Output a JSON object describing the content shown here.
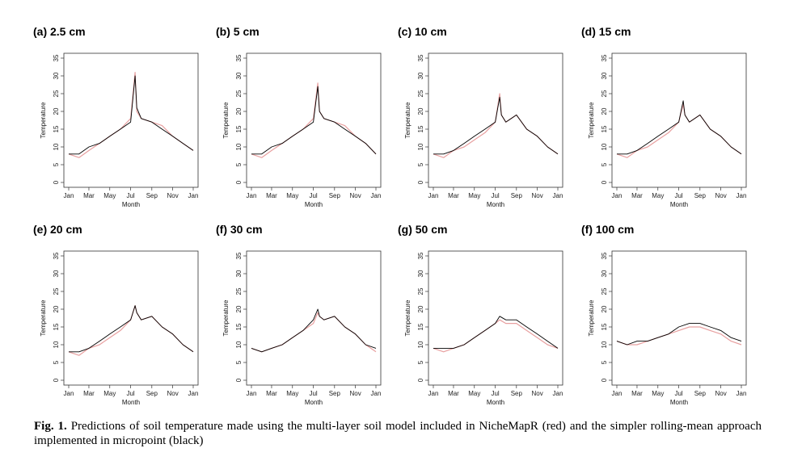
{
  "caption": {
    "label": "Fig. 1.",
    "text": " Predictions of soil temperature made using the multi-layer soil model included in NicheMapR (red) and the simpler rolling-mean approach implemented in micropoint (black)"
  },
  "chart_data": [
    {
      "type": "line",
      "title": "(a)  2.5 cm",
      "xlabel": "Month",
      "ylabel": "Temperature",
      "ylim": [
        0,
        35
      ],
      "xticks": [
        "Jan",
        "Mar",
        "May",
        "Jul",
        "Sep",
        "Nov",
        "Jan"
      ],
      "yticks": [
        0,
        5,
        10,
        15,
        20,
        25,
        30,
        35
      ],
      "x": [
        1,
        31,
        60,
        91,
        121,
        152,
        182,
        195,
        200,
        213,
        244,
        274,
        305,
        335,
        365
      ],
      "series": [
        {
          "color": "#e8a0a0",
          "values": [
            8,
            7,
            9,
            11,
            13,
            15,
            18,
            31,
            20,
            18,
            17,
            16,
            13,
            11,
            9
          ]
        },
        {
          "color": "#000000",
          "values": [
            8,
            8,
            10,
            11,
            13,
            15,
            17,
            30,
            21,
            18,
            17,
            15,
            13,
            11,
            9
          ]
        }
      ]
    },
    {
      "type": "line",
      "title": "(b)  5 cm",
      "xlabel": "Month",
      "ylabel": "Temperature",
      "ylim": [
        0,
        35
      ],
      "xticks": [
        "Jan",
        "Mar",
        "May",
        "Jul",
        "Sep",
        "Nov",
        "Jan"
      ],
      "yticks": [
        0,
        5,
        10,
        15,
        20,
        25,
        30,
        35
      ],
      "x": [
        1,
        31,
        60,
        91,
        121,
        152,
        182,
        195,
        200,
        213,
        244,
        274,
        305,
        335,
        365
      ],
      "series": [
        {
          "color": "#e8a0a0",
          "values": [
            8,
            7,
            9,
            11,
            13,
            15,
            18,
            28,
            20,
            18,
            17,
            16,
            13,
            11,
            8
          ]
        },
        {
          "color": "#000000",
          "values": [
            8,
            8,
            10,
            11,
            13,
            15,
            17,
            27,
            20,
            18,
            17,
            15,
            13,
            11,
            8
          ]
        }
      ]
    },
    {
      "type": "line",
      "title": "(c)  10 cm",
      "xlabel": "Month",
      "ylabel": "Temperature",
      "ylim": [
        0,
        35
      ],
      "xticks": [
        "Jan",
        "Mar",
        "May",
        "Jul",
        "Sep",
        "Nov",
        "Jan"
      ],
      "yticks": [
        0,
        5,
        10,
        15,
        20,
        25,
        30,
        35
      ],
      "x": [
        1,
        31,
        60,
        91,
        121,
        152,
        182,
        195,
        200,
        213,
        244,
        274,
        305,
        335,
        365
      ],
      "series": [
        {
          "color": "#e8a0a0",
          "values": [
            8,
            7,
            9,
            10,
            12,
            14,
            17,
            25,
            19,
            17,
            19,
            15,
            13,
            10,
            8
          ]
        },
        {
          "color": "#000000",
          "values": [
            8,
            8,
            9,
            11,
            13,
            15,
            17,
            24,
            19,
            17,
            19,
            15,
            13,
            10,
            8
          ]
        }
      ]
    },
    {
      "type": "line",
      "title": "(d)  15 cm",
      "xlabel": "Month",
      "ylabel": "Temperature",
      "ylim": [
        0,
        35
      ],
      "xticks": [
        "Jan",
        "Mar",
        "May",
        "Jul",
        "Sep",
        "Nov",
        "Jan"
      ],
      "yticks": [
        0,
        5,
        10,
        15,
        20,
        25,
        30,
        35
      ],
      "x": [
        1,
        31,
        60,
        91,
        121,
        152,
        182,
        195,
        200,
        213,
        244,
        274,
        305,
        335,
        365
      ],
      "series": [
        {
          "color": "#e8a0a0",
          "values": [
            8,
            7,
            9,
            10,
            12,
            14,
            17,
            22,
            19,
            17,
            19,
            15,
            13,
            10,
            8
          ]
        },
        {
          "color": "#000000",
          "values": [
            8,
            8,
            9,
            11,
            13,
            15,
            17,
            23,
            19,
            17,
            19,
            15,
            13,
            10,
            8
          ]
        }
      ]
    },
    {
      "type": "line",
      "title": "(e)  20 cm",
      "xlabel": "Month",
      "ylabel": "Temperature",
      "ylim": [
        0,
        35
      ],
      "xticks": [
        "Jan",
        "Mar",
        "May",
        "Jul",
        "Sep",
        "Nov",
        "Jan"
      ],
      "yticks": [
        0,
        5,
        10,
        15,
        20,
        25,
        30,
        35
      ],
      "x": [
        1,
        31,
        60,
        91,
        121,
        152,
        182,
        195,
        200,
        213,
        244,
        274,
        305,
        335,
        365
      ],
      "series": [
        {
          "color": "#e8a0a0",
          "values": [
            8,
            7,
            9,
            10,
            12,
            14,
            17,
            21,
            19,
            17,
            18,
            15,
            13,
            10,
            8
          ]
        },
        {
          "color": "#000000",
          "values": [
            8,
            8,
            9,
            11,
            13,
            15,
            17,
            21,
            19,
            17,
            18,
            15,
            13,
            10,
            8
          ]
        }
      ]
    },
    {
      "type": "line",
      "title": "(f)  30 cm",
      "xlabel": "Month",
      "ylabel": "Temperature",
      "ylim": [
        0,
        35
      ],
      "xticks": [
        "Jan",
        "Mar",
        "May",
        "Jul",
        "Sep",
        "Nov",
        "Jan"
      ],
      "yticks": [
        0,
        5,
        10,
        15,
        20,
        25,
        30,
        35
      ],
      "x": [
        1,
        31,
        60,
        91,
        121,
        152,
        182,
        195,
        200,
        213,
        244,
        274,
        305,
        335,
        365
      ],
      "series": [
        {
          "color": "#e8a0a0",
          "values": [
            9,
            8,
            9,
            10,
            12,
            14,
            16,
            19,
            18,
            17,
            18,
            15,
            13,
            10,
            8
          ]
        },
        {
          "color": "#000000",
          "values": [
            9,
            8,
            9,
            10,
            12,
            14,
            17,
            20,
            18,
            17,
            18,
            15,
            13,
            10,
            9
          ]
        }
      ]
    },
    {
      "type": "line",
      "title": "(g)  50 cm",
      "xlabel": "Month",
      "ylabel": "Temperature",
      "ylim": [
        0,
        35
      ],
      "xticks": [
        "Jan",
        "Mar",
        "May",
        "Jul",
        "Sep",
        "Nov",
        "Jan"
      ],
      "yticks": [
        0,
        5,
        10,
        15,
        20,
        25,
        30,
        35
      ],
      "x": [
        1,
        31,
        60,
        91,
        121,
        152,
        182,
        195,
        213,
        244,
        274,
        305,
        335,
        365
      ],
      "series": [
        {
          "color": "#e8a0a0",
          "values": [
            9,
            8,
            9,
            10,
            12,
            14,
            16,
            17,
            16,
            16,
            14,
            12,
            10,
            9
          ]
        },
        {
          "color": "#000000",
          "values": [
            9,
            9,
            9,
            10,
            12,
            14,
            16,
            18,
            17,
            17,
            15,
            13,
            11,
            9
          ]
        }
      ]
    },
    {
      "type": "line",
      "title": "(f)  100 cm",
      "xlabel": "Month",
      "ylabel": "Temperature",
      "ylim": [
        0,
        35
      ],
      "xticks": [
        "Jan",
        "Mar",
        "May",
        "Jul",
        "Sep",
        "Nov",
        "Jan"
      ],
      "yticks": [
        0,
        5,
        10,
        15,
        20,
        25,
        30,
        35
      ],
      "x": [
        1,
        31,
        60,
        91,
        121,
        152,
        182,
        213,
        244,
        274,
        305,
        335,
        365
      ],
      "series": [
        {
          "color": "#e8a0a0",
          "values": [
            11,
            10,
            10,
            11,
            12,
            13,
            14,
            15,
            15,
            14,
            13,
            11,
            10
          ]
        },
        {
          "color": "#000000",
          "values": [
            11,
            10,
            11,
            11,
            12,
            13,
            15,
            16,
            16,
            15,
            14,
            12,
            11
          ]
        }
      ]
    }
  ]
}
